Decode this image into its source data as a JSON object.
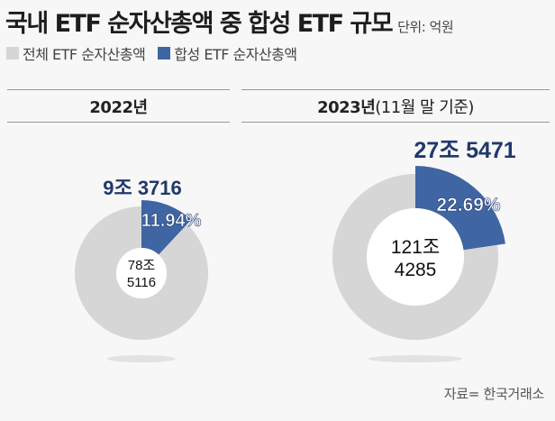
{
  "title": "국내 ETF 순자산총액 중 합성 ETF 규모",
  "unit": "단위: 억원",
  "source": "자료= 한국거래소",
  "colors": {
    "total": "#d6d6d6",
    "synthetic": "#3f65a3",
    "synthetic_text": "#21386c"
  },
  "chart_data": [
    {
      "type": "pie",
      "title": "2022년",
      "title_sub": "",
      "legend": [
        "전체 ETF 순자산총액",
        "합성 ETF 순자산총액"
      ],
      "total_label": [
        "78조",
        "5116"
      ],
      "synthetic_label": "9조 3716",
      "synthetic_pct_label": "11.94%",
      "values": {
        "total": 785116,
        "synthetic": 93716,
        "synthetic_pct": 11.94
      }
    },
    {
      "type": "pie",
      "title": "2023년",
      "title_sub": "(11월 말 기준)",
      "legend": [
        "전체 ETF 순자산총액",
        "합성 ETF 순자산총액"
      ],
      "total_label": [
        "121조",
        "4285"
      ],
      "synthetic_label": "27조 5471",
      "synthetic_pct_label": "22.69%",
      "values": {
        "total": 1214285,
        "synthetic": 275471,
        "synthetic_pct": 22.69
      }
    }
  ]
}
